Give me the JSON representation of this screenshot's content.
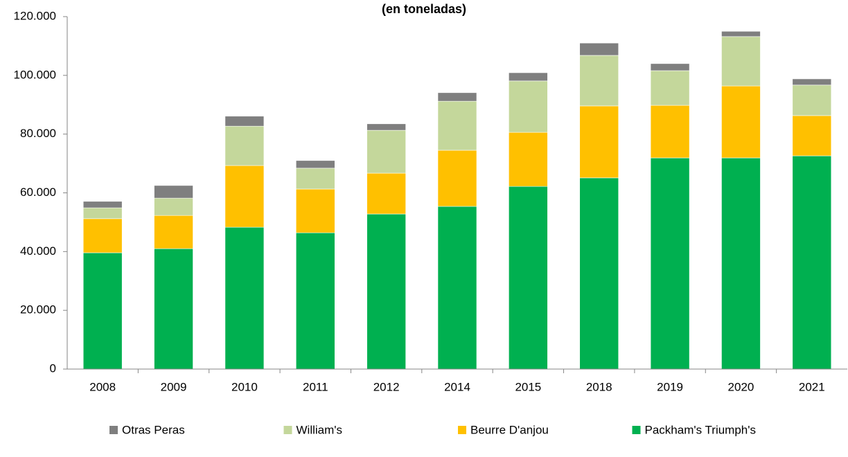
{
  "chart_data": {
    "type": "stacked_bar",
    "title": "(en toneladas)",
    "categories": [
      "2008",
      "2009",
      "2010",
      "2011",
      "2012",
      "2014",
      "2015",
      "2018",
      "2019",
      "2020",
      "2021"
    ],
    "series": [
      {
        "name": "Packham's Triumph's",
        "color": "#00b050",
        "values": [
          39600,
          41000,
          48300,
          46400,
          52800,
          55400,
          62200,
          65100,
          71900,
          71900,
          72600
        ]
      },
      {
        "name": "Beurre D'anjou",
        "color": "#ffc000",
        "values": [
          11600,
          11300,
          21000,
          14900,
          13900,
          19100,
          18400,
          24500,
          17900,
          24500,
          13700
        ]
      },
      {
        "name": "William's",
        "color": "#c4d79b",
        "values": [
          3700,
          5900,
          13400,
          7100,
          14600,
          16700,
          17500,
          17200,
          11800,
          16800,
          10400
        ]
      },
      {
        "name": "Otras Peras",
        "color": "#7f7f7f",
        "values": [
          2200,
          4300,
          3400,
          2600,
          2200,
          2900,
          2800,
          4200,
          2400,
          1800,
          2100
        ]
      }
    ],
    "ylim": [
      0,
      120000
    ],
    "yticks": [
      0,
      {
        "value": 20000,
        "label": "20.000"
      },
      {
        "value": 40000,
        "label": "40.000"
      },
      {
        "value": 60000,
        "label": "60.000"
      },
      {
        "value": 80000,
        "label": "80.000"
      },
      {
        "value": 100000,
        "label": "100.000"
      },
      {
        "value": 120000,
        "label": "120.000"
      }
    ],
    "legend": "bottom"
  }
}
